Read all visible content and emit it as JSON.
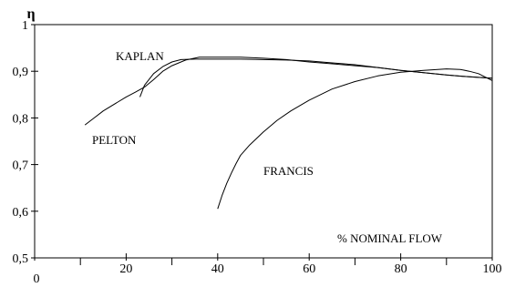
{
  "chart_data": {
    "type": "line",
    "ylabel": "η",
    "xlabel": "% NOMINAL FLOW",
    "xlim": [
      0,
      100
    ],
    "ylim": [
      0.5,
      1.0
    ],
    "x_tick_labels": [
      "0",
      "20",
      "40",
      "60",
      "80",
      "100"
    ],
    "x_ticks": [
      0,
      20,
      40,
      60,
      80,
      100
    ],
    "y_tick_labels": [
      "0,5",
      "0,6",
      "0,7",
      "0,8",
      "0,9",
      "1"
    ],
    "y_ticks": [
      0.5,
      0.6,
      0.7,
      0.8,
      0.9,
      1.0
    ],
    "grid": false,
    "series": [
      {
        "name": "KAPLAN",
        "x": [
          23,
          24,
          26,
          28,
          30,
          32,
          35,
          40,
          45,
          50,
          55,
          60,
          65,
          70,
          75,
          80,
          85,
          90,
          95,
          100
        ],
        "y": [
          0.845,
          0.87,
          0.895,
          0.91,
          0.92,
          0.925,
          0.926,
          0.926,
          0.926,
          0.925,
          0.924,
          0.922,
          0.918,
          0.914,
          0.908,
          0.902,
          0.897,
          0.892,
          0.888,
          0.885
        ]
      },
      {
        "name": "PELTON",
        "x": [
          11,
          13,
          15,
          18,
          20,
          22,
          24,
          26,
          28,
          30,
          33,
          36,
          40,
          45,
          50,
          55,
          60,
          65,
          70,
          75,
          80,
          85,
          90,
          95,
          100
        ],
        "y": [
          0.785,
          0.8,
          0.815,
          0.833,
          0.845,
          0.855,
          0.866,
          0.882,
          0.9,
          0.912,
          0.924,
          0.93,
          0.93,
          0.93,
          0.928,
          0.925,
          0.92,
          0.916,
          0.912,
          0.908,
          0.902,
          0.897,
          0.892,
          0.888,
          0.885
        ]
      },
      {
        "name": "FRANCIS",
        "x": [
          40,
          41,
          42,
          43,
          44,
          45,
          47,
          50,
          53,
          56,
          60,
          65,
          70,
          75,
          80,
          85,
          90,
          93,
          95,
          97,
          100
        ],
        "y": [
          0.605,
          0.635,
          0.66,
          0.682,
          0.702,
          0.72,
          0.742,
          0.77,
          0.795,
          0.815,
          0.838,
          0.862,
          0.878,
          0.89,
          0.898,
          0.902,
          0.905,
          0.904,
          0.9,
          0.895,
          0.88
        ]
      }
    ]
  }
}
